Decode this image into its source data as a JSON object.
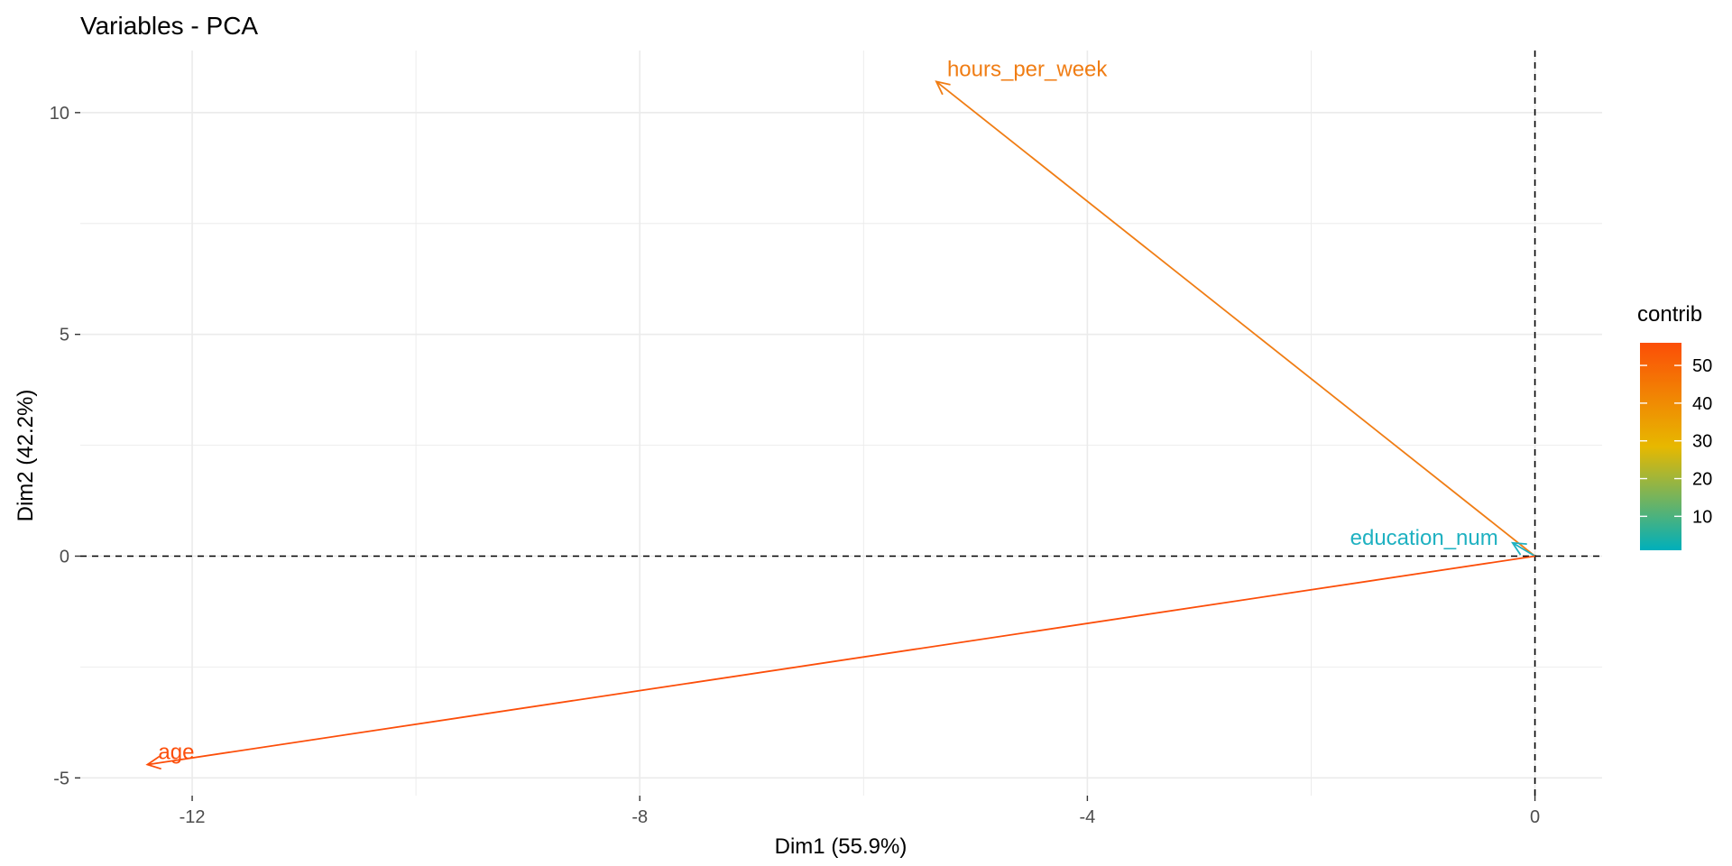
{
  "chart_data": {
    "type": "scatter",
    "subtype": "pca-variable-arrows",
    "title": "Variables - PCA",
    "xlabel": "Dim1 (55.9%)",
    "ylabel": "Dim2 (42.2%)",
    "xlim": [
      -13.0,
      0.6
    ],
    "ylim": [
      -5.4,
      11.4
    ],
    "xticks": [
      -12,
      -8,
      -4,
      0
    ],
    "yticks": [
      -5,
      0,
      5,
      10
    ],
    "grid": true,
    "reference_lines": {
      "x": 0,
      "y": 0,
      "style": "dashed"
    },
    "variables": [
      {
        "name": "hours_per_week",
        "x": -5.35,
        "y": 10.7,
        "contrib": 42,
        "color": "#f07d14"
      },
      {
        "name": "education_num",
        "x": -0.2,
        "y": 0.3,
        "contrib": 1,
        "color": "#1fb1c1"
      },
      {
        "name": "age",
        "x": -12.4,
        "y": -4.7,
        "contrib": 56,
        "color": "#fc4e0a"
      }
    ],
    "legend": {
      "title": "contrib",
      "position": "right",
      "ticks": [
        10,
        20,
        30,
        40,
        50
      ],
      "range": [
        1,
        56
      ],
      "gradient_colors": [
        "#00AFBB",
        "#E7B800",
        "#FC4E07"
      ]
    }
  }
}
